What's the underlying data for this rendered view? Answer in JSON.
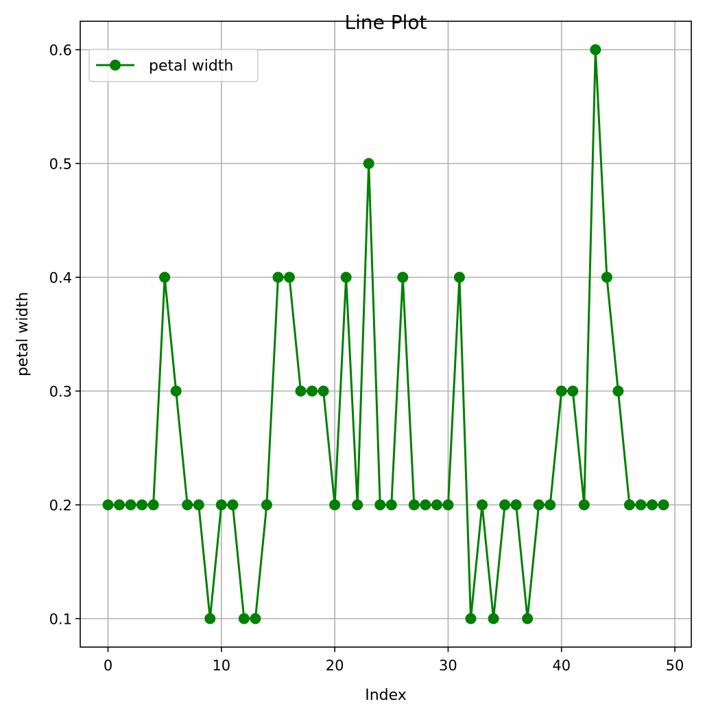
{
  "chart_data": {
    "type": "line",
    "title": "Line Plot",
    "xlabel": "Index",
    "ylabel": "petal width",
    "xlim": [
      -2.45,
      51.45
    ],
    "ylim": [
      0.075,
      0.625
    ],
    "xticks": [
      0,
      10,
      20,
      30,
      40,
      50
    ],
    "yticks": [
      0.1,
      0.2,
      0.3,
      0.4,
      0.5,
      0.6
    ],
    "xtick_labels": [
      "0",
      "10",
      "20",
      "30",
      "40",
      "50"
    ],
    "ytick_labels": [
      "0.1",
      "0.2",
      "0.3",
      "0.4",
      "0.5",
      "0.6"
    ],
    "grid": true,
    "legend_position": "top-left",
    "series": [
      {
        "name": "petal width",
        "color": "#008000",
        "marker": "circle",
        "x": [
          0,
          1,
          2,
          3,
          4,
          5,
          6,
          7,
          8,
          9,
          10,
          11,
          12,
          13,
          14,
          15,
          16,
          17,
          18,
          19,
          20,
          21,
          22,
          23,
          24,
          25,
          26,
          27,
          28,
          29,
          30,
          31,
          32,
          33,
          34,
          35,
          36,
          37,
          38,
          39,
          40,
          41,
          42,
          43,
          44,
          45,
          46,
          47,
          48,
          49
        ],
        "y": [
          0.2,
          0.2,
          0.2,
          0.2,
          0.2,
          0.4,
          0.3,
          0.2,
          0.2,
          0.1,
          0.2,
          0.2,
          0.1,
          0.1,
          0.2,
          0.4,
          0.4,
          0.3,
          0.3,
          0.3,
          0.2,
          0.4,
          0.2,
          0.5,
          0.2,
          0.2,
          0.4,
          0.2,
          0.2,
          0.2,
          0.2,
          0.4,
          0.1,
          0.2,
          0.1,
          0.2,
          0.2,
          0.1,
          0.2,
          0.2,
          0.3,
          0.3,
          0.2,
          0.6,
          0.4,
          0.3,
          0.2,
          0.2,
          0.2,
          0.2
        ]
      }
    ]
  }
}
